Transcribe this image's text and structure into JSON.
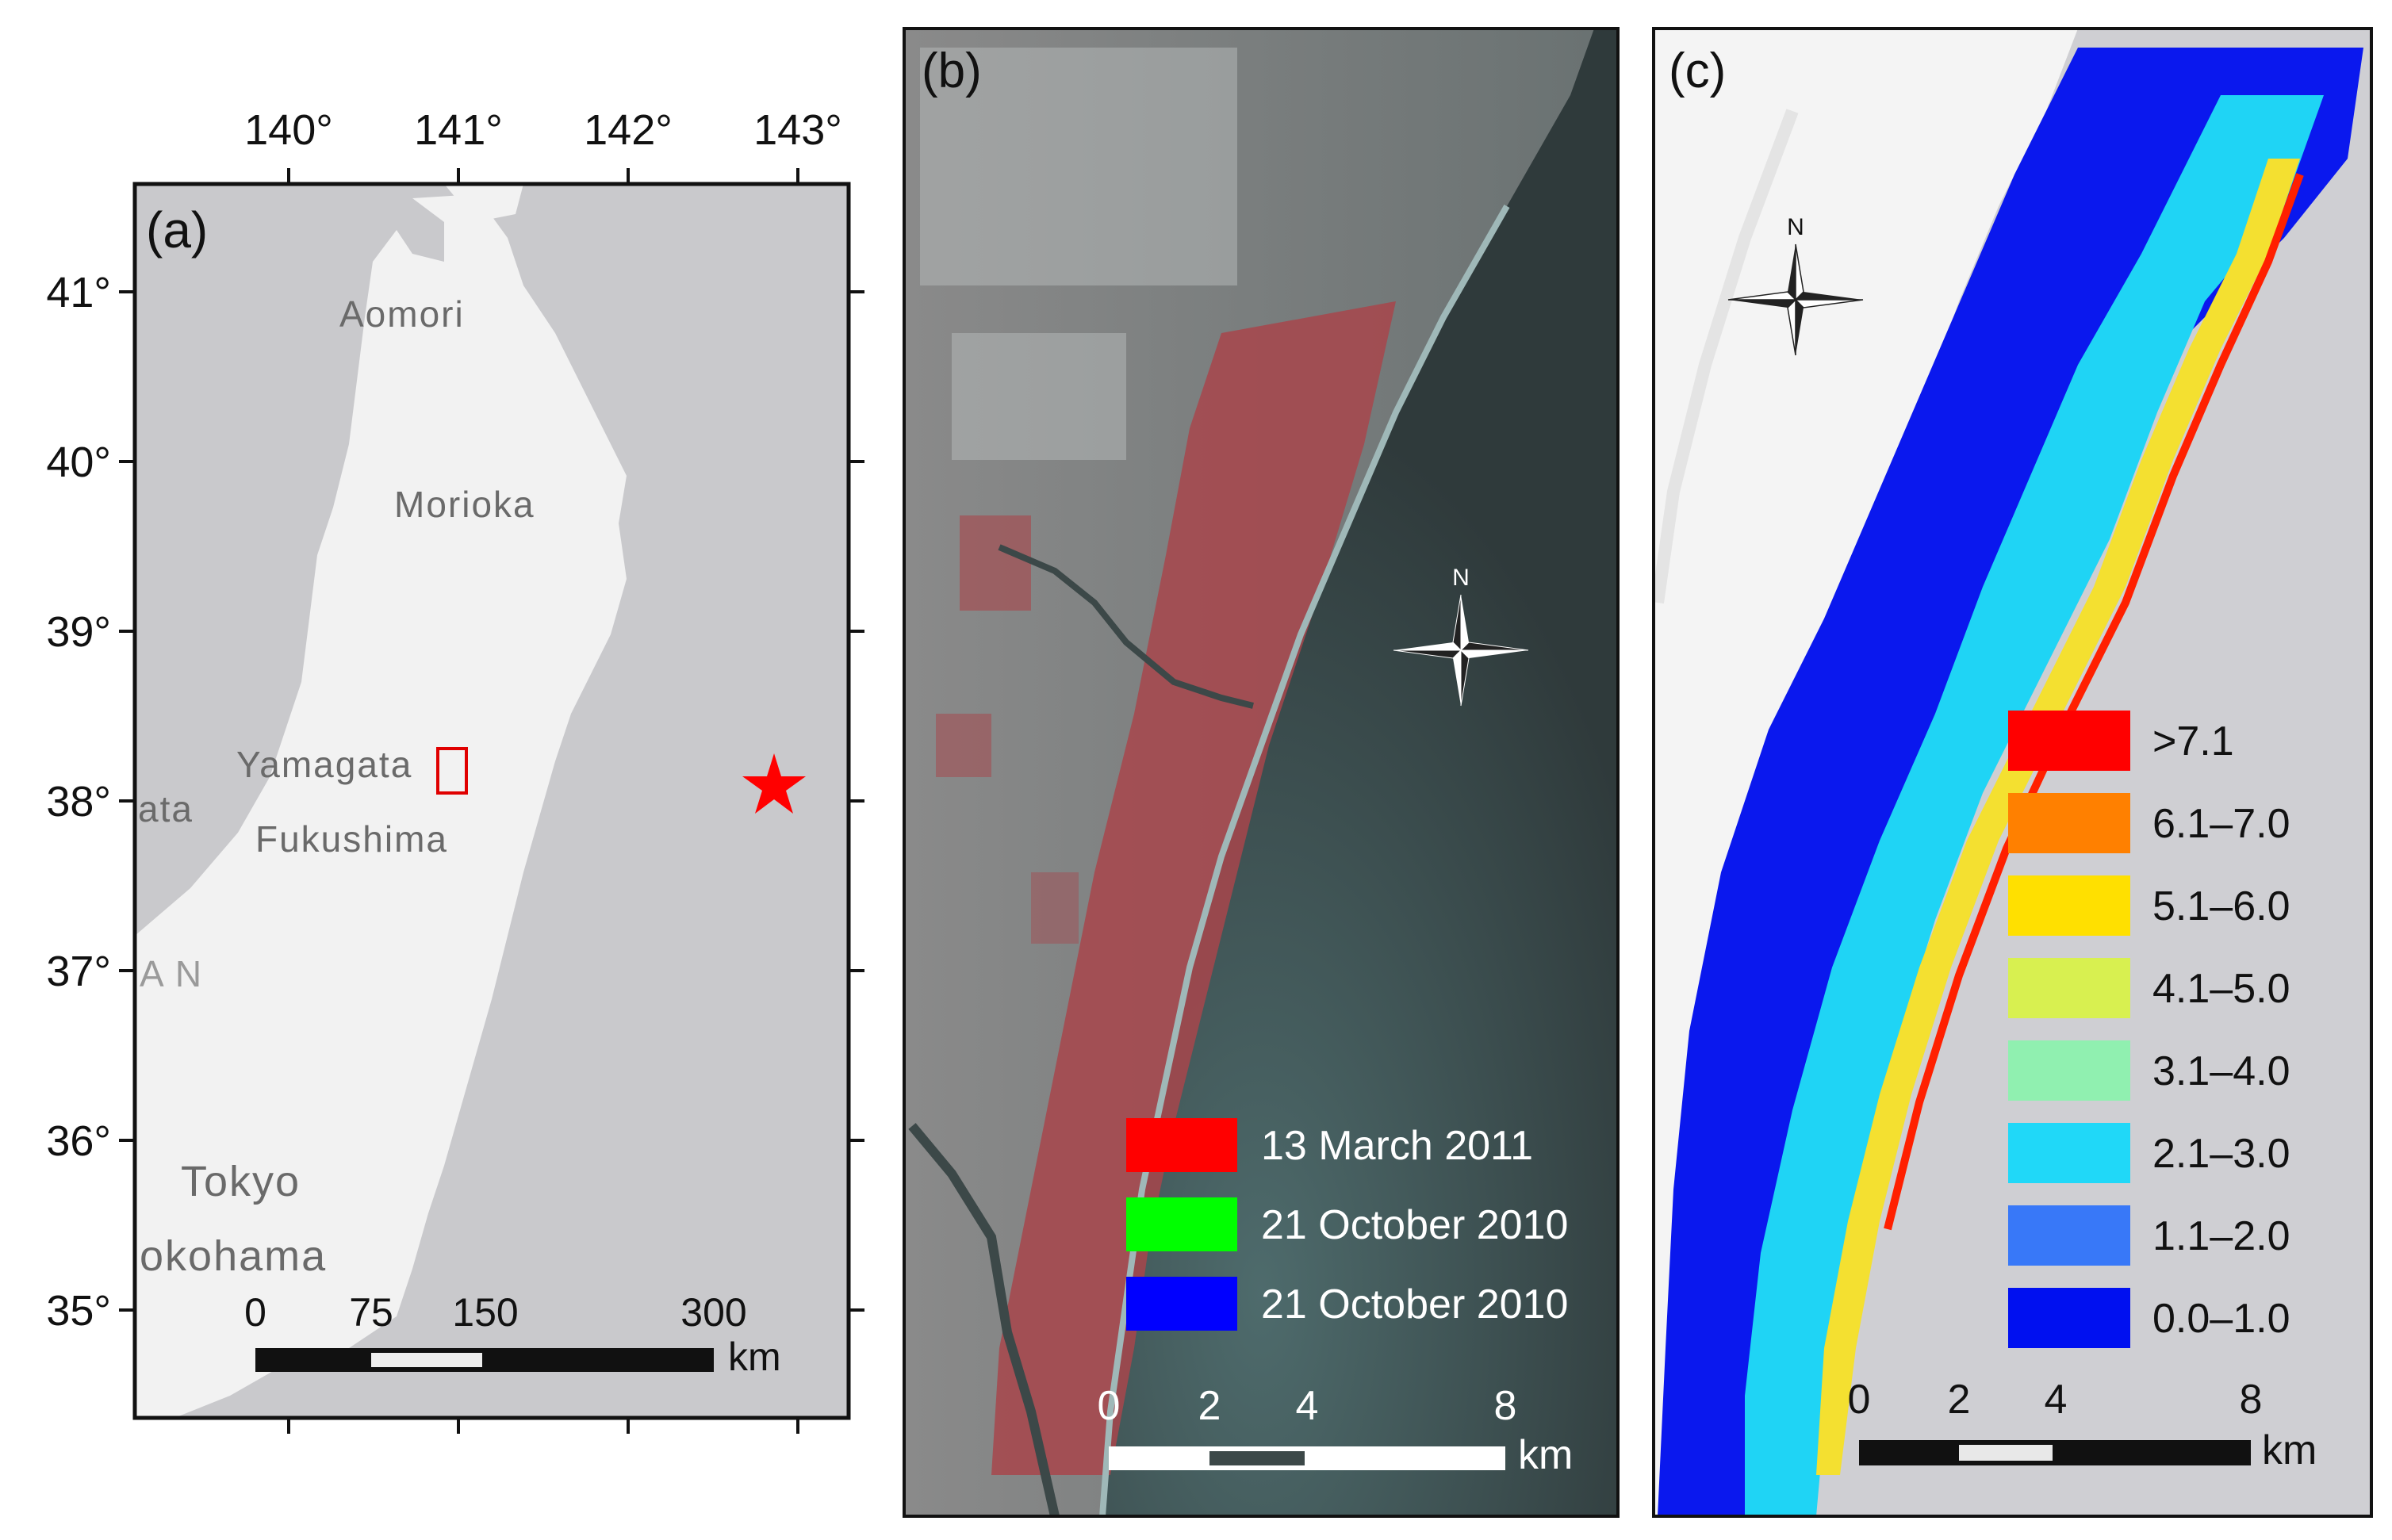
{
  "panel_a": {
    "label": "(a)",
    "lon_ticks": [
      "140°",
      "141°",
      "142°",
      "143°"
    ],
    "lat_ticks": [
      "41°",
      "40°",
      "39°",
      "38°",
      "37°",
      "36°",
      "35°"
    ],
    "cities": [
      "Aomori",
      "Morioka",
      "Yamagata",
      "Fukushima",
      "Tokyo",
      "okohama",
      "ata",
      "A N"
    ],
    "scale_labels": [
      "0",
      "75",
      "150",
      "300"
    ],
    "scale_unit": "km",
    "epicenter_color": "#ff0000",
    "study_area_color": "#e00000"
  },
  "panel_b": {
    "label": "(b)",
    "legend": [
      {
        "color": "#ff0000",
        "label": "13 March 2011"
      },
      {
        "color": "#00ff00",
        "label": "21 October 2010"
      },
      {
        "color": "#0000ff",
        "label": "21 October 2010"
      }
    ],
    "north": "N",
    "scale_labels": [
      "0",
      "2",
      "4",
      "8"
    ],
    "scale_unit": "km"
  },
  "panel_c": {
    "label": "(c)",
    "legend": [
      {
        "color": "#ff0000",
        "label": ">7.1"
      },
      {
        "color": "#ff8000",
        "label": "6.1–7.0"
      },
      {
        "color": "#ffe000",
        "label": "5.1–6.0"
      },
      {
        "color": "#d8f050",
        "label": "4.1–5.0"
      },
      {
        "color": "#90f0b0",
        "label": "3.1–4.0"
      },
      {
        "color": "#20d8f8",
        "label": "2.1–3.0"
      },
      {
        "color": "#3878f8",
        "label": "1.1–2.0"
      },
      {
        "color": "#0010f0",
        "label": "0.0–1.0"
      }
    ],
    "north": "N",
    "scale_labels": [
      "0",
      "2",
      "4",
      "8"
    ],
    "scale_unit": "km"
  }
}
